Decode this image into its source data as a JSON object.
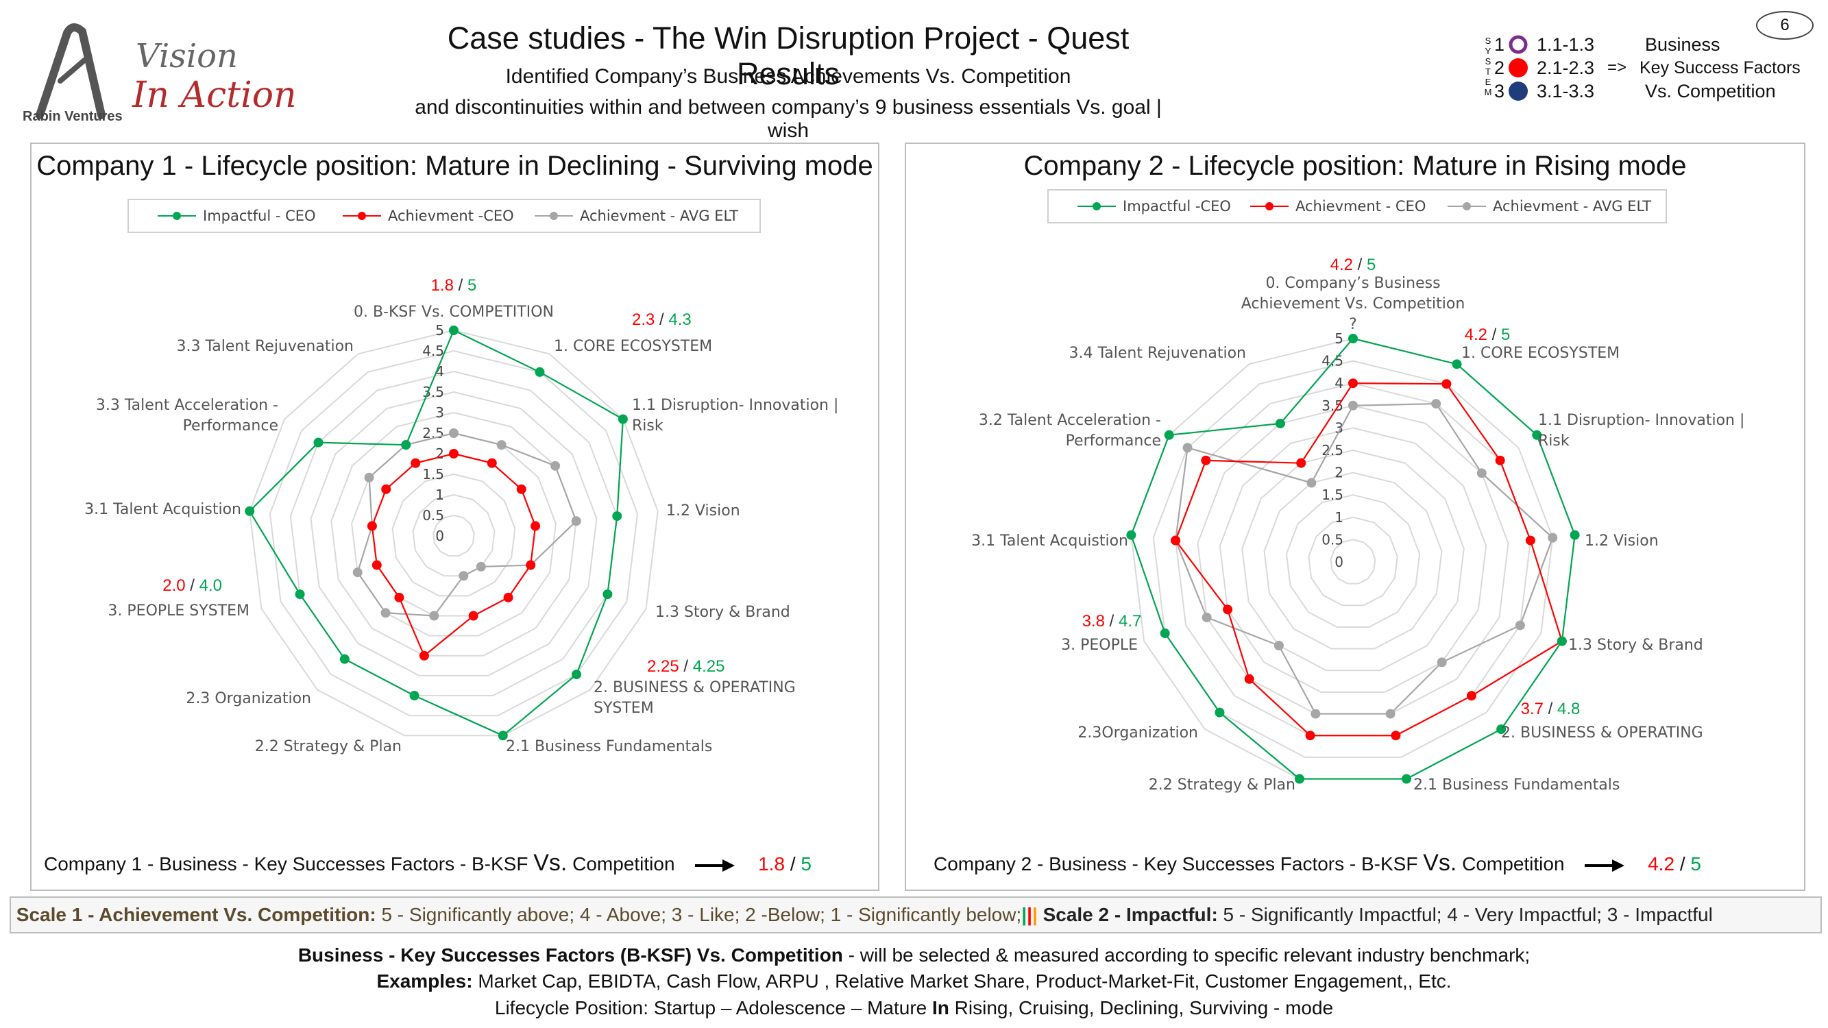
{
  "header": {
    "title": "Case studies - The Win Disruption Project - Quest Results",
    "subtitle1": "Identified Company’s Business Achievements Vs. Competition",
    "subtitle2": "and discontinuities within and between company’s 9  business essentials Vs. goal | wish",
    "page_number": "6"
  },
  "logo": {
    "line1": "Vision",
    "line2": "In Action",
    "company": "Rabin Ventures"
  },
  "system_legend": {
    "letters": [
      "S",
      "Y",
      "S",
      "T",
      "E",
      "M"
    ],
    "rows": [
      {
        "num": "1",
        "range": "1.1-1.3",
        "arrow": "",
        "label": "Business",
        "color": "#7b2c8f",
        "style": "ring"
      },
      {
        "num": "2",
        "range": "2.1-2.3",
        "arrow": "=>",
        "label": "Key Success Factors",
        "color": "#ff0000",
        "style": "dot"
      },
      {
        "num": "3",
        "range": "3.1-3.3",
        "arrow": "",
        "label": "Vs. Competition",
        "color": "#1f3d7a",
        "style": "dot"
      }
    ]
  },
  "colors": {
    "impactful": "#00a651",
    "achievement": "#ff0000",
    "avg_elt": "#a6a6a6",
    "grid": "#d9d9d9"
  },
  "chart_data": [
    {
      "type": "radar",
      "title": "Company 1 - Lifecycle position: Mature in Declining - Surviving mode",
      "rlim": [
        0,
        5
      ],
      "ticks": [
        "0",
        "0.5",
        "1",
        "1.5",
        "2",
        "2.5",
        "3",
        "3.5",
        "4",
        "4.5",
        "5"
      ],
      "categories": [
        "0.  B-KSF Vs. COMPETITION",
        "1.  CORE ECOSYSTEM",
        "1.1 Disruption- Innovation | Risk",
        "1.2  Vision",
        "1.3  Story & Brand",
        "2.  BUSINESS & OPERATING SYSTEM",
        "2.1 Business Fundamentals",
        "2.2 Strategy & Plan",
        "2.3  Organization",
        "3. PEOPLE SYSTEM",
        "3.1  Talent Acquistion",
        "3.3  Talent Acceleration - Performance",
        "3.3  Talent Rejuvenation"
      ],
      "series": [
        {
          "name": "Impactful - CEO",
          "color": "#00a651",
          "values": [
            5,
            4.5,
            5,
            4,
            4,
            4.5,
            5,
            4,
            4,
            4,
            5,
            4,
            2.5
          ]
        },
        {
          "name": "Achievment -CEO",
          "color": "#ff0000",
          "values": [
            2,
            2,
            2,
            2,
            2,
            2,
            2,
            3,
            2,
            2,
            2,
            2,
            2
          ]
        },
        {
          "name": "Achievment - AVG ELT",
          "color": "#a6a6a6",
          "values": [
            2.5,
            2.5,
            3,
            3,
            2,
            1,
            1,
            2,
            2.5,
            2.5,
            2,
            2.5,
            2.5
          ]
        }
      ],
      "annotations": [
        {
          "category_index": 0,
          "achieved": "1.8",
          "goal": "5"
        },
        {
          "category_index": 1,
          "achieved": "2.3",
          "goal": "4.3"
        },
        {
          "category_index": 5,
          "achieved": "2.25",
          "goal": "4.25"
        },
        {
          "category_index": 9,
          "achieved": "2.0",
          "goal": "4.0"
        }
      ],
      "bottom": {
        "prefix": "Company 1 - Business - Key Successes Factors -  B-KSF ",
        "vs": "Vs.",
        "middle": "  Competition",
        "achieved": "1.8",
        "goal": "5"
      }
    },
    {
      "type": "radar",
      "title": "Company 2 - Lifecycle position: Mature in Rising mode",
      "rlim": [
        0,
        5
      ],
      "ticks": [
        "0",
        "0.5",
        "1",
        "1.5",
        "2",
        "2.5",
        "3",
        "3.5",
        "4",
        "4.5",
        "5"
      ],
      "categories": [
        "0. Company’s Business Achievement Vs. Competition ?",
        "1. CORE ECOSYSTEM",
        "1.1 Disruption- Innovation | Risk",
        "1.2 Vision",
        "1.3 Story & Brand",
        "2. BUSINESS & OPERATING",
        "2.1 Business Fundamentals",
        "2.2 Strategy & Plan",
        "2.3Organization",
        "3. PEOPLE",
        "3.1 Talent Acquistion",
        "3.2 Talent Acceleration - Performance",
        "3.4 Talent Rejuvenation"
      ],
      "series": [
        {
          "name": "Impactful -CEO",
          "color": "#00a651",
          "values": [
            5,
            5,
            5,
            5,
            5,
            5,
            5,
            5,
            4.5,
            4.5,
            5,
            5,
            3.5
          ]
        },
        {
          "name": "Achievment - CEO",
          "color": "#ff0000",
          "values": [
            4,
            4.5,
            4,
            4,
            5,
            4,
            4,
            4,
            3.5,
            3,
            4,
            4,
            2.5
          ]
        },
        {
          "name": "Achievment - AVG ELT",
          "color": "#a6a6a6",
          "values": [
            3.5,
            4,
            3.5,
            4.5,
            4,
            3,
            3.5,
            3.5,
            2.5,
            3.5,
            4,
            4.5,
            2
          ]
        }
      ],
      "annotations": [
        {
          "category_index": 0,
          "achieved": "4.2",
          "goal": "5"
        },
        {
          "category_index": 1,
          "achieved": "4.2",
          "goal": "5"
        },
        {
          "category_index": 5,
          "achieved": "3.7",
          "goal": "4.8"
        },
        {
          "category_index": 9,
          "achieved": "3.8",
          "goal": "4.7"
        }
      ],
      "bottom": {
        "prefix": "Company 2 - Business - Key Successes Factors -  B-KSF ",
        "vs": "Vs.",
        "middle": "  Competition",
        "achieved": "4.2",
        "goal": "5"
      }
    }
  ],
  "scale_bar": {
    "scale1_label": "Scale 1 - Achievement Vs. Competition:",
    "scale1_text": " 5 - Significantly above; 4 - Above; 3 - Like; 2 -Below; 1 - Significantly below;",
    "sep": "|||",
    "scale2_label": " Scale 2 - Impactful:",
    "scale2_text": " 5 - Significantly Impactful; 4 - Very Impactful; 3 - Impactful"
  },
  "footer": {
    "line1_bold": "Business - Key Successes Factors (B-KSF) Vs. Competition",
    "line1_text": " - will be selected & measured according to specific relevant industry benchmark;",
    "line2_bold": "Examples:",
    "line2_text": " Market Cap, EBIDTA, Cash Flow, ARPU , Relative Market Share, Product-Market-Fit, Customer Engagement,, Etc.",
    "line3_a": "Lifecycle Position:  Startup – Adolescence – Mature ",
    "line3_bold": "In",
    "line3_b": " Rising, Cruising, Declining, Surviving - mode"
  }
}
